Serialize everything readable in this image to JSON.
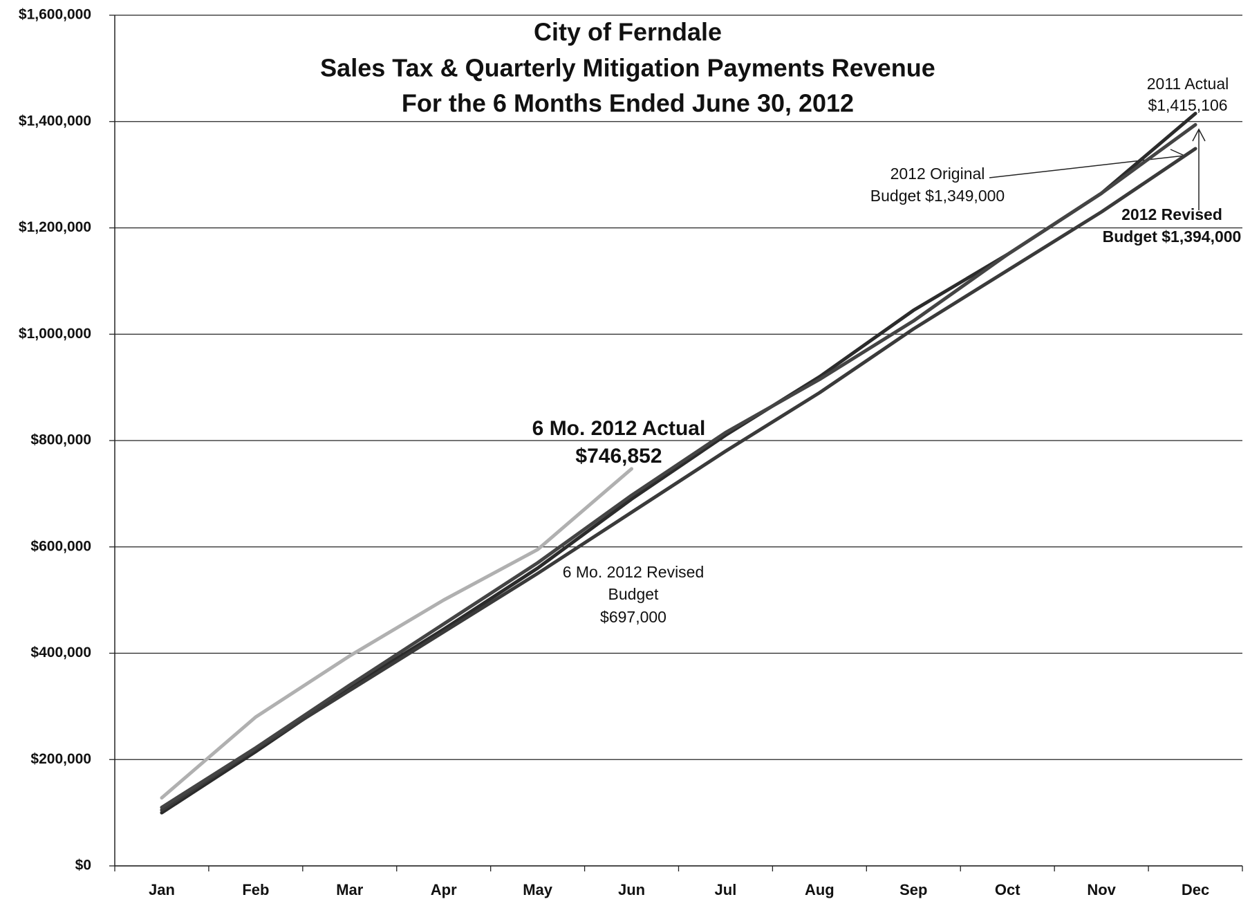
{
  "chart_data": {
    "type": "line",
    "title": [
      "City of Ferndale",
      "Sales Tax & Quarterly Mitigation Payments Revenue",
      "For the 6 Months Ended June 30, 2012"
    ],
    "categories": [
      "Jan",
      "Feb",
      "Mar",
      "Apr",
      "May",
      "Jun",
      "Jul",
      "Aug",
      "Sep",
      "Oct",
      "Nov",
      "Dec"
    ],
    "series": [
      {
        "color": "#2b2b2b",
        "values": [
          100000,
          215000,
          335000,
          445000,
          560000,
          690000,
          810000,
          920000,
          1045000,
          1150000,
          1265000,
          1415106
        ]
      },
      {
        "color": "#3a3a3a",
        "values": [
          105000,
          220000,
          330000,
          440000,
          550000,
          665000,
          780000,
          890000,
          1010000,
          1120000,
          1230000,
          1349000
        ]
      },
      {
        "color": "#444444",
        "values": [
          110000,
          222000,
          340000,
          455000,
          570000,
          697000,
          815000,
          915000,
          1025000,
          1150000,
          1265000,
          1394000
        ]
      },
      {
        "color": "#b0b0b0",
        "values": [
          128000,
          280000,
          395000,
          500000,
          595000,
          746852,
          null,
          null,
          null,
          null,
          null,
          null
        ]
      }
    ],
    "ylim": [
      0,
      1600000
    ],
    "yticks": [
      {
        "value": 0,
        "label": "$0"
      },
      {
        "value": 200000,
        "label": "$200,000"
      },
      {
        "value": 400000,
        "label": "$400,000"
      },
      {
        "value": 600000,
        "label": "$600,000"
      },
      {
        "value": 800000,
        "label": "$800,000"
      },
      {
        "value": 1000000,
        "label": "$1,000,000"
      },
      {
        "value": 1200000,
        "label": "$1,200,000"
      },
      {
        "value": 1400000,
        "label": "$1,400,000"
      },
      {
        "value": 1600000,
        "label": "$1,600,000"
      }
    ],
    "grid": true,
    "annotations": [
      {
        "lines": [
          "2011 Actual",
          "$1,415,106"
        ]
      },
      {
        "lines": [
          "2012 Original",
          "Budget $1,349,000"
        ]
      },
      {
        "lines": [
          "2012 Revised",
          "Budget $1,394,000"
        ]
      },
      {
        "lines": [
          "6 Mo. 2012 Actual",
          "$746,852"
        ]
      },
      {
        "lines": [
          "6 Mo. 2012 Revised",
          "Budget",
          "$697,000"
        ]
      }
    ]
  }
}
